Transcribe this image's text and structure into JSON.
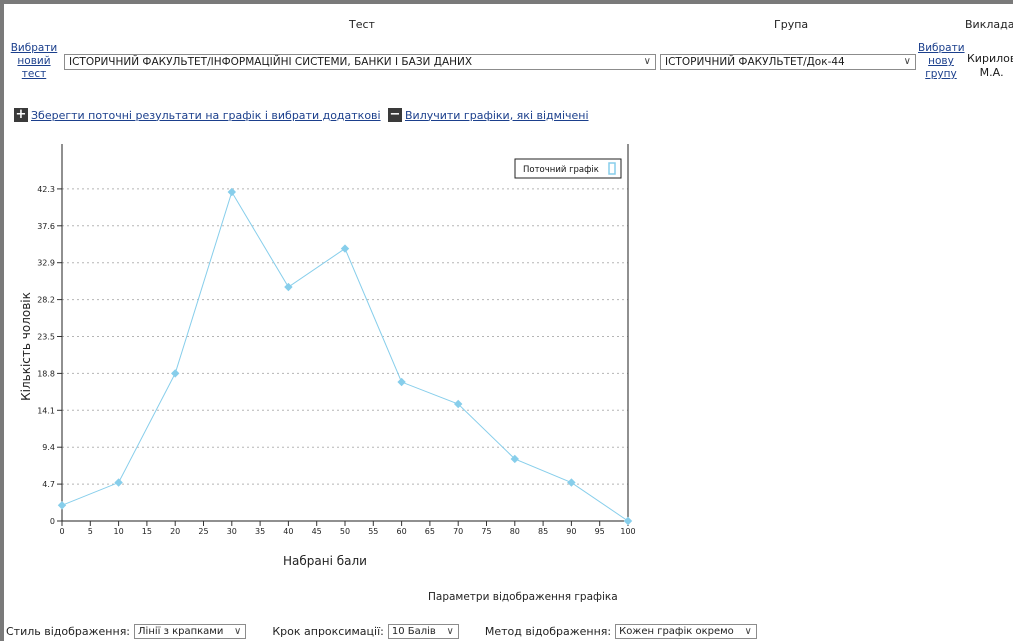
{
  "header": {
    "test_label": "Тест",
    "group_label": "Група",
    "teacher_label": "Викладач"
  },
  "test": {
    "pick_line1": "Вибрати",
    "pick_line2": "новий",
    "pick_line3": "тест",
    "selected": "ІСТОРИЧНИЙ ФАКУЛЬТЕТ/ІНФОРМАЦІЙНІ СИСТЕМИ, БАНКИ І БАЗИ ДАНИХ"
  },
  "group": {
    "selected": "ІСТОРИЧНИЙ ФАКУЛЬТЕТ/Док-44",
    "pick_line1": "Вибрати",
    "pick_line2": "нову",
    "pick_line3": "групу"
  },
  "teacher": {
    "name_line1": "Кирилов",
    "name_line2": "М.А."
  },
  "actions": {
    "save_label": "Зберегти поточні результати на графік і вибрати додаткові",
    "remove_label": "Вилучити графіки, які відмічені"
  },
  "chart_data": {
    "type": "line",
    "x": [
      0,
      10,
      20,
      30,
      40,
      50,
      60,
      70,
      80,
      90,
      100
    ],
    "series": [
      {
        "name": "Поточний графік",
        "values": [
          2,
          4.9,
          18.8,
          41.9,
          29.8,
          34.7,
          17.7,
          14.9,
          7.9,
          4.9,
          0
        ],
        "color": "#87ceeb"
      }
    ],
    "xlabel": "Набрані бали",
    "ylabel": "Кількість чоловік",
    "xlim": [
      0,
      100
    ],
    "ylim": [
      0,
      47
    ],
    "xticks": [
      "0",
      "5",
      "10",
      "15",
      "20",
      "25",
      "30",
      "35",
      "40",
      "45",
      "50",
      "55",
      "60",
      "65",
      "70",
      "75",
      "80",
      "85",
      "90",
      "95",
      "100"
    ],
    "yticks": [
      "0",
      "4.7",
      "9.4",
      "14.1",
      "18.8",
      "23.5",
      "28.2",
      "32.9",
      "37.6",
      "42.3"
    ],
    "grid": "horizontal-dotted",
    "legend": "top-right"
  },
  "params": {
    "title": "Параметри відображення графіка",
    "style_label": "Стиль відображення:",
    "style_value": "Лінії з крапками",
    "step_label": "Крок апроксимації:",
    "step_value": "10 Балів",
    "method_label": "Метод відображення:",
    "method_value": "Кожен графік окремо"
  }
}
